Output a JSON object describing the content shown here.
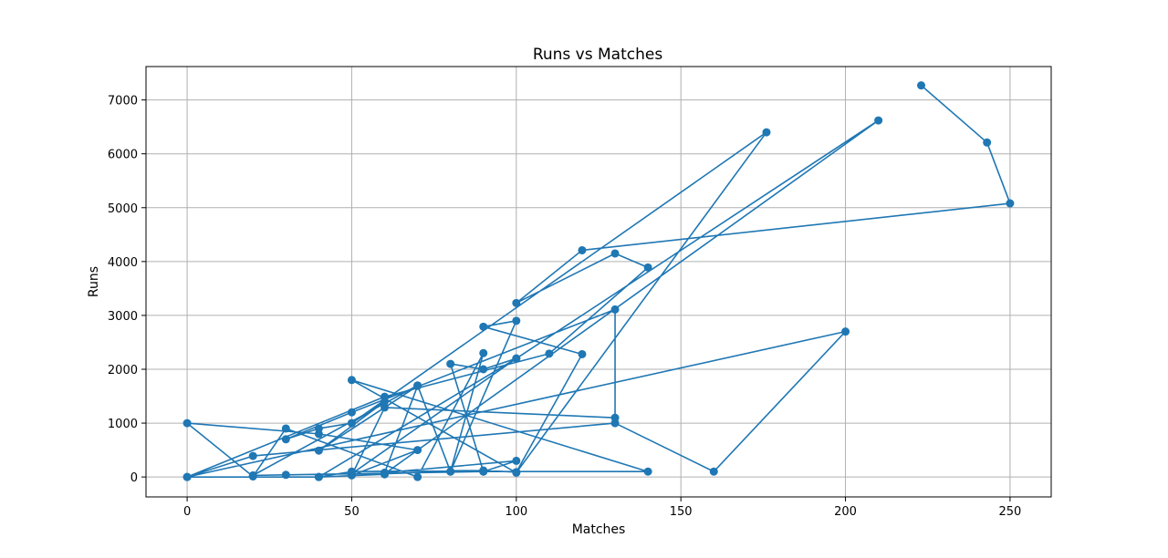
{
  "chart_data": {
    "type": "line",
    "title": "Runs vs Matches",
    "xlabel": "Matches",
    "ylabel": "Runs",
    "xlim": [
      -12.5,
      262.5
    ],
    "ylim": [
      -370,
      7620
    ],
    "xticks": [
      0,
      50,
      100,
      150,
      200,
      250
    ],
    "yticks": [
      0,
      1000,
      2000,
      3000,
      4000,
      5000,
      6000,
      7000
    ],
    "grid": true,
    "marker": "circle",
    "color": "#1f77b4",
    "series": [
      {
        "x": [
          223,
          243,
          250,
          120,
          100,
          130,
          140,
          110,
          60,
          0,
          20,
          130,
          160,
          200,
          0,
          40,
          50,
          90,
          100,
          120,
          90,
          100,
          80,
          90,
          70,
          30,
          20,
          0,
          40,
          70,
          50,
          60,
          130,
          130,
          50,
          30,
          40,
          50,
          60,
          40,
          70,
          60,
          100,
          90,
          80,
          90,
          100,
          40,
          60,
          50,
          100,
          210,
          60,
          80,
          70,
          20,
          30,
          90,
          140,
          50,
          100,
          176,
          50
        ],
        "y": [
          7270,
          6210,
          5080,
          4210,
          3230,
          4150,
          3890,
          2290,
          1490,
          0,
          390,
          1000,
          100,
          2700,
          0,
          0,
          100,
          120,
          90,
          2280,
          2790,
          2900,
          100,
          2300,
          0,
          900,
          10,
          1000,
          800,
          500,
          30,
          1290,
          1100,
          3110,
          1200,
          700,
          900,
          1000,
          1400,
          490,
          1690,
          80,
          300,
          100,
          2100,
          2000,
          2200,
          0,
          50,
          60,
          2200,
          6620,
          60,
          100,
          1700,
          30,
          40,
          100,
          100,
          1800,
          80,
          6400,
          1000
        ]
      }
    ]
  }
}
